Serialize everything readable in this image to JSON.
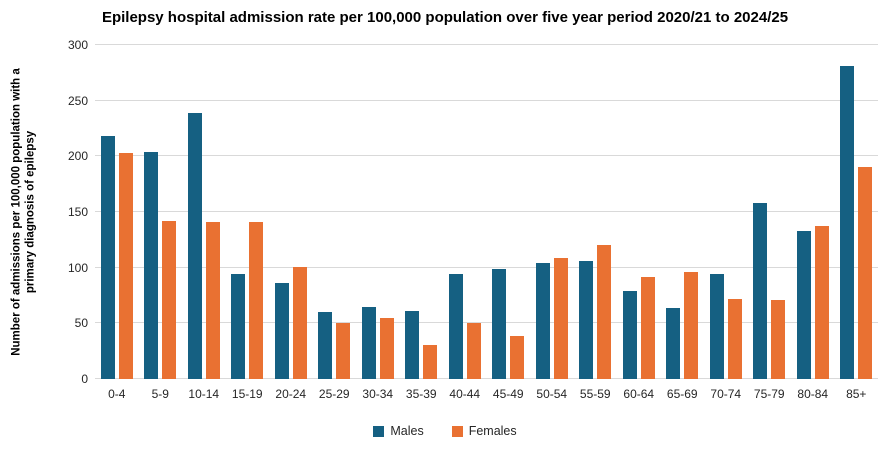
{
  "chart_data": {
    "type": "bar",
    "title": "Epilepsy hospital admission rate per 100,000 population over five year period 2020/21 to 2024/25",
    "xlabel": "",
    "ylabel": "Number of admissions per 100,000 population with a primary diagnosis of epilepsy",
    "ylabel_lines": [
      "Number of admissions per 100,000 population with a",
      "primary diagnosis of epilepsy"
    ],
    "categories": [
      "0-4",
      "5-9",
      "10-14",
      "15-19",
      "20-24",
      "25-29",
      "30-34",
      "35-39",
      "40-44",
      "45-49",
      "50-54",
      "55-59",
      "60-64",
      "65-69",
      "70-74",
      "75-79",
      "80-84",
      "85+"
    ],
    "series": [
      {
        "name": "Males",
        "color": "#156082",
        "values": [
          218,
          204,
          239,
          94,
          86,
          60,
          65,
          61,
          94,
          99,
          104,
          106,
          79,
          64,
          94,
          158,
          133,
          281
        ]
      },
      {
        "name": "Females",
        "color": "#E97132",
        "values": [
          203,
          142,
          141,
          141,
          101,
          50,
          55,
          31,
          50,
          39,
          109,
          120,
          92,
          96,
          72,
          71,
          137,
          190
        ]
      }
    ],
    "ylim": [
      0,
      300
    ],
    "yticks": [
      0,
      50,
      100,
      150,
      200,
      250,
      300
    ],
    "grid": "horizontal",
    "gridline_color": "#D9D9D9",
    "legend_position": "bottom",
    "background_color": "#FFFFFF"
  }
}
